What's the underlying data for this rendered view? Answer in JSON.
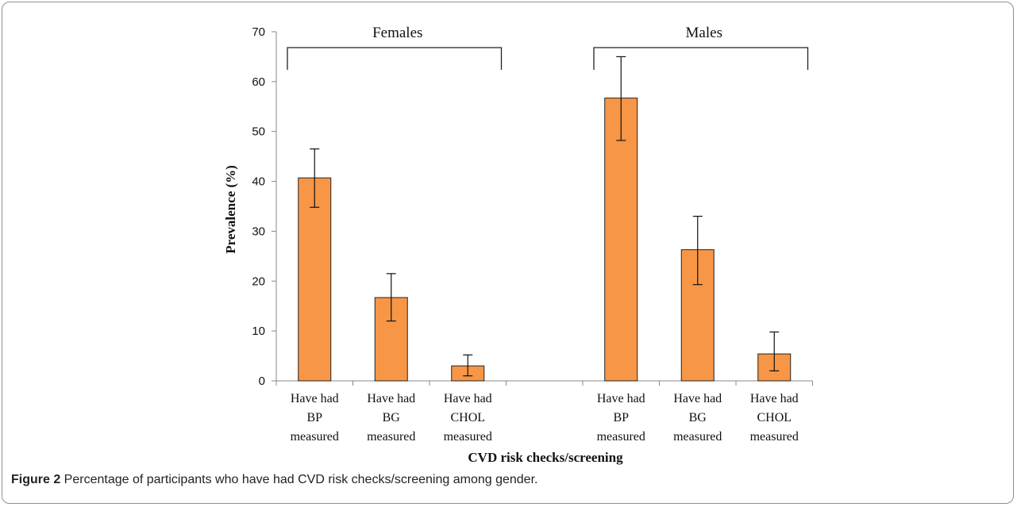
{
  "chart_data": {
    "type": "bar",
    "ylabel": "Prevalence  (%)",
    "xlabel": "CVD risk checks/screening",
    "ylim": [
      0,
      70
    ],
    "yticks": [
      0,
      10,
      20,
      30,
      40,
      50,
      60,
      70
    ],
    "bar_color": "#f79646",
    "groups": [
      {
        "name": "Females",
        "categories": [
          [
            "Have had",
            "BP",
            "measured"
          ],
          [
            "Have had",
            "BG",
            "measured"
          ],
          [
            "Have had",
            "CHOL",
            "measured"
          ]
        ],
        "values": [
          40.7,
          16.7,
          3.0
        ],
        "error_low": [
          34.8,
          12.0,
          1.0
        ],
        "error_high": [
          46.5,
          21.5,
          5.2
        ]
      },
      {
        "name": "Males",
        "categories": [
          [
            "Have had",
            "BP",
            "measured"
          ],
          [
            "Have had",
            "BG",
            "measured"
          ],
          [
            "Have had",
            "CHOL",
            "measured"
          ]
        ],
        "values": [
          56.7,
          26.3,
          5.4
        ],
        "error_low": [
          48.2,
          19.3,
          2.0
        ],
        "error_high": [
          65.0,
          33.0,
          9.8
        ]
      }
    ]
  },
  "caption": {
    "label": "Figure 2",
    "text": " Percentage of participants who have had CVD risk checks/screening among gender."
  }
}
